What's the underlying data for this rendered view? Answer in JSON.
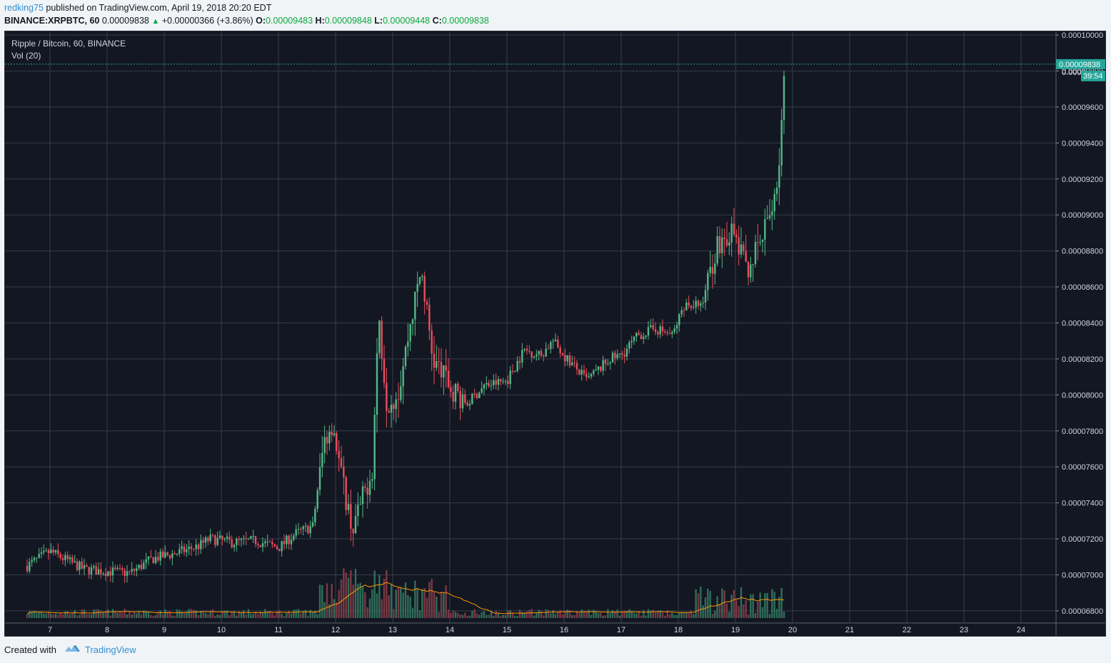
{
  "header": {
    "author": "redking75",
    "published_text": "published on TradingView.com, April 19, 2018 20:20 EDT",
    "symbol": "BINANCE:XRPBTC, 60",
    "last": "0.00009838",
    "change": "+0.00000366 (+3.86%)",
    "o_label": "O:",
    "o_value": "0.00009483",
    "h_label": "H:",
    "h_value": "0.00009848",
    "l_label": "L:",
    "l_value": "0.00009448",
    "c_label": "C:",
    "c_value": "0.00009838"
  },
  "legend": {
    "title": "Ripple / Bitcoin, 60, BINANCE",
    "volume": "Vol (20)"
  },
  "footer": {
    "created_with": "Created with",
    "brand": "TradingView"
  },
  "price_tag": {
    "price": "0.00009838",
    "countdown": "39:54",
    "hidden_label": "0.0000"
  },
  "colors": {
    "background": "#131722",
    "grid": "#363c4e",
    "up": "#53b987",
    "down": "#eb4d5c",
    "volume_up": "#2f6e59",
    "volume_down": "#7a3844",
    "ma": "#ff9800",
    "axis_text": "#d1d4dc",
    "last_price": "#26a69a"
  },
  "chart_data": {
    "type": "candlestick",
    "title": "Ripple / Bitcoin, 60, BINANCE",
    "y_axis_ticks": [
      "0.00010000",
      "0.00009800",
      "0.00009600",
      "0.00009400",
      "0.00009200",
      "0.00009000",
      "0.00008800",
      "0.00008600",
      "0.00008400",
      "0.00008200",
      "0.00008000",
      "0.00007800",
      "0.00007600",
      "0.00007400",
      "0.00007200",
      "0.00007000",
      "0.00006800"
    ],
    "x_axis_ticks": [
      "7",
      "8",
      "9",
      "10",
      "11",
      "12",
      "13",
      "14",
      "15",
      "16",
      "17",
      "18",
      "19",
      "20",
      "21",
      "22",
      "23",
      "24"
    ],
    "ylim": [
      6.76e-05,
      0.0001002
    ],
    "interval": "60",
    "last_price": 9.838e-05,
    "price_path": [
      {
        "day": 6.6,
        "price": 7.05e-05
      },
      {
        "day": 7.0,
        "price": 7.13e-05
      },
      {
        "day": 7.3,
        "price": 7.08e-05
      },
      {
        "day": 7.6,
        "price": 7.03e-05
      },
      {
        "day": 8.0,
        "price": 7.02e-05
      },
      {
        "day": 8.4,
        "price": 7.01e-05
      },
      {
        "day": 8.8,
        "price": 7.09e-05
      },
      {
        "day": 9.2,
        "price": 7.12e-05
      },
      {
        "day": 9.6,
        "price": 7.16e-05
      },
      {
        "day": 9.8,
        "price": 7.2e-05
      },
      {
        "day": 10.2,
        "price": 7.18e-05
      },
      {
        "day": 10.6,
        "price": 7.19e-05
      },
      {
        "day": 11.0,
        "price": 7.15e-05
      },
      {
        "day": 11.3,
        "price": 7.23e-05
      },
      {
        "day": 11.6,
        "price": 7.27e-05
      },
      {
        "day": 11.8,
        "price": 7.75e-05
      },
      {
        "day": 11.95,
        "price": 7.85e-05
      },
      {
        "day": 12.1,
        "price": 7.55e-05
      },
      {
        "day": 12.3,
        "price": 7.25e-05
      },
      {
        "day": 12.5,
        "price": 7.45e-05
      },
      {
        "day": 12.65,
        "price": 7.6e-05
      },
      {
        "day": 12.75,
        "price": 8.45e-05
      },
      {
        "day": 12.9,
        "price": 7.95e-05
      },
      {
        "day": 13.1,
        "price": 8.02e-05
      },
      {
        "day": 13.3,
        "price": 8.38e-05
      },
      {
        "day": 13.5,
        "price": 8.7e-05
      },
      {
        "day": 13.7,
        "price": 8.2e-05
      },
      {
        "day": 14.0,
        "price": 8.05e-05
      },
      {
        "day": 14.3,
        "price": 7.95e-05
      },
      {
        "day": 14.6,
        "price": 8.05e-05
      },
      {
        "day": 15.0,
        "price": 8.08e-05
      },
      {
        "day": 15.3,
        "price": 8.25e-05
      },
      {
        "day": 15.6,
        "price": 8.22e-05
      },
      {
        "day": 15.8,
        "price": 8.3e-05
      },
      {
        "day": 16.0,
        "price": 8.22e-05
      },
      {
        "day": 16.4,
        "price": 8.08e-05
      },
      {
        "day": 16.8,
        "price": 8.2e-05
      },
      {
        "day": 17.0,
        "price": 8.22e-05
      },
      {
        "day": 17.3,
        "price": 8.33e-05
      },
      {
        "day": 17.6,
        "price": 8.37e-05
      },
      {
        "day": 17.9,
        "price": 8.33e-05
      },
      {
        "day": 18.1,
        "price": 8.5e-05
      },
      {
        "day": 18.4,
        "price": 8.5e-05
      },
      {
        "day": 18.7,
        "price": 8.85e-05
      },
      {
        "day": 18.95,
        "price": 8.9e-05
      },
      {
        "day": 19.2,
        "price": 8.7e-05
      },
      {
        "day": 19.45,
        "price": 8.85e-05
      },
      {
        "day": 19.6,
        "price": 9e-05
      },
      {
        "day": 19.75,
        "price": 9.22e-05
      },
      {
        "day": 19.87,
        "price": 9.838e-05
      }
    ]
  }
}
